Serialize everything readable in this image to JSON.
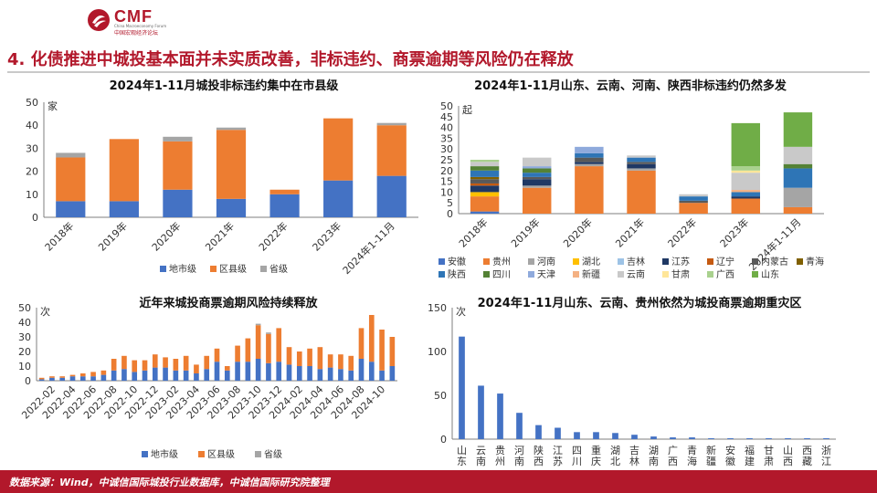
{
  "header": {
    "logo_text": "CMF",
    "logo_en": "China Macroeconomy Forum",
    "logo_cn": "中国宏观经济论坛",
    "headline": "4. 化债推进中城投基本面并未实质改善，非标违约、商票逾期等风险仍在释放"
  },
  "footer": {
    "source": "数据来源：Wind，中诚信国际城投行业数据库，中诚信国际研究院整理"
  },
  "colors": {
    "brand": "#b2182b",
    "series": {
      "地市级": "#4472c4",
      "区县级": "#ed7d31",
      "省级": "#a5a5a5",
      "安徽": "#4472c4",
      "贵州": "#ed7d31",
      "河南": "#a5a5a5",
      "湖北": "#ffc000",
      "吉林": "#9dc3e6",
      "江苏": "#1f3864",
      "辽宁": "#c55a11",
      "内蒙古": "#595959",
      "青海": "#806000",
      "陕西": "#2e75b6",
      "四川": "#548235",
      "天津": "#8faadc",
      "新疆": "#f4b183",
      "云南": "#c9c9c9",
      "甘肃": "#ffe699",
      "广西": "#a9d18e",
      "山东": "#70ad47"
    }
  },
  "chart_data": [
    {
      "id": "c1",
      "type": "bar",
      "stacked": true,
      "title": "2024年1-11月城投非标违约集中在市县级",
      "unit": "家",
      "categories": [
        "2018年",
        "2019年",
        "2020年",
        "2021年",
        "2022年",
        "2023年",
        "2024年1-11月"
      ],
      "series": [
        {
          "name": "地市级",
          "values": [
            7,
            7,
            12,
            8,
            10,
            16,
            18
          ]
        },
        {
          "name": "区县级",
          "values": [
            19,
            27,
            21,
            30,
            2,
            27,
            22
          ]
        },
        {
          "name": "省级",
          "values": [
            2,
            0,
            2,
            1,
            0,
            0,
            1
          ]
        }
      ],
      "ylim": [
        0,
        50
      ],
      "yticks": [
        0,
        10,
        20,
        30,
        40,
        50
      ],
      "legend": "bottom",
      "grid": false
    },
    {
      "id": "c2",
      "type": "bar",
      "stacked": true,
      "title": "2024年1-11月山东、云南、河南、陕西非标违约仍然多发",
      "unit": "起",
      "categories": [
        "2018年",
        "2019年",
        "2020年",
        "2021年",
        "2022年",
        "2023年",
        "2024年1-11月"
      ],
      "series": [
        {
          "name": "安徽",
          "values": [
            1,
            0,
            0,
            0,
            0,
            0,
            0
          ]
        },
        {
          "name": "贵州",
          "values": [
            7,
            12,
            22,
            20,
            5,
            7,
            3
          ]
        },
        {
          "name": "河南",
          "values": [
            0,
            1,
            1,
            1,
            0,
            0,
            9
          ]
        },
        {
          "name": "湖北",
          "values": [
            2,
            0,
            0,
            0,
            0,
            0,
            0
          ]
        },
        {
          "name": "吉林",
          "values": [
            0,
            0,
            0,
            0,
            0,
            0,
            0
          ]
        },
        {
          "name": "江苏",
          "values": [
            3,
            3,
            1,
            2,
            0,
            1,
            0
          ]
        },
        {
          "name": "辽宁",
          "values": [
            1,
            0,
            0,
            0,
            0,
            0,
            0
          ]
        },
        {
          "name": "内蒙古",
          "values": [
            2,
            1,
            2,
            1,
            1,
            0,
            0
          ]
        },
        {
          "name": "青海",
          "values": [
            1,
            0,
            0,
            0,
            0,
            0,
            0
          ]
        },
        {
          "name": "陕西",
          "values": [
            3,
            2,
            2,
            2,
            2,
            2,
            9
          ]
        },
        {
          "name": "四川",
          "values": [
            2,
            2,
            0,
            0,
            0,
            0,
            2
          ]
        },
        {
          "name": "天津",
          "values": [
            0,
            1,
            3,
            0,
            0,
            0,
            0
          ]
        },
        {
          "name": "新疆",
          "values": [
            0,
            0,
            0,
            0,
            0,
            1,
            0
          ]
        },
        {
          "name": "云南",
          "values": [
            2,
            4,
            0,
            1,
            1,
            8,
            8
          ]
        },
        {
          "name": "甘肃",
          "values": [
            0,
            0,
            0,
            0,
            0,
            1,
            0
          ]
        },
        {
          "name": "广西",
          "values": [
            1,
            0,
            0,
            0,
            0,
            2,
            0
          ]
        },
        {
          "name": "山东",
          "values": [
            0,
            0,
            0,
            0,
            0,
            20,
            16
          ]
        }
      ],
      "ylim": [
        0,
        50
      ],
      "yticks": [
        0,
        5,
        10,
        15,
        20,
        25,
        30,
        35,
        40,
        45,
        50
      ],
      "legend": "bottom",
      "grid": false
    },
    {
      "id": "c3",
      "type": "bar",
      "stacked": true,
      "title": "近年来城投商票逾期风险持续释放",
      "unit": "次",
      "categories": [
        "2022-01",
        "2022-02",
        "2022-03",
        "2022-04",
        "2022-05",
        "2022-06",
        "2022-07",
        "2022-08",
        "2022-09",
        "2022-10",
        "2022-11",
        "2022-12",
        "2023-01",
        "2023-02",
        "2023-03",
        "2023-04",
        "2023-05",
        "2023-06",
        "2023-07",
        "2023-08",
        "2023-09",
        "2023-10",
        "2023-11",
        "2023-12",
        "2024-01",
        "2024-02",
        "2024-03",
        "2024-04",
        "2024-05",
        "2024-06",
        "2024-07",
        "2024-08",
        "2024-09",
        "2024-10",
        "2024-11"
      ],
      "xtick_labels": [
        "2022-02",
        "2022-04",
        "2022-06",
        "2022-08",
        "2022-10",
        "2022-12",
        "2023-02",
        "2023-04",
        "2023-06",
        "2023-08",
        "2023-10",
        "2023-12",
        "2024-02",
        "2024-04",
        "2024-06",
        "2024-08",
        "2024-10"
      ],
      "series": [
        {
          "name": "地市级",
          "values": [
            1,
            2,
            2,
            3,
            3,
            3,
            4,
            7,
            8,
            6,
            7,
            9,
            9,
            7,
            7,
            5,
            8,
            13,
            7,
            13,
            13,
            15,
            12,
            13,
            11,
            10,
            10,
            8,
            9,
            8,
            7,
            15,
            13,
            7,
            10
          ]
        },
        {
          "name": "区县级",
          "values": [
            1,
            1,
            1,
            1,
            2,
            3,
            3,
            8,
            9,
            8,
            7,
            9,
            7,
            8,
            10,
            6,
            9,
            9,
            3,
            11,
            16,
            23,
            20,
            23,
            12,
            10,
            12,
            15,
            9,
            10,
            10,
            21,
            32,
            28,
            20
          ]
        },
        {
          "name": "省级",
          "values": [
            0,
            0,
            0,
            0,
            0,
            0,
            0,
            0,
            0,
            0,
            0,
            0,
            0,
            0,
            0,
            0,
            0,
            0,
            0,
            0,
            0,
            1,
            1,
            0,
            0,
            0,
            0,
            0,
            0,
            0,
            0,
            0,
            0,
            0,
            0
          ]
        }
      ],
      "ylim": [
        0,
        50
      ],
      "yticks": [
        0,
        10,
        20,
        30,
        40,
        50
      ],
      "legend": "bottom",
      "grid": false
    },
    {
      "id": "c4",
      "type": "bar",
      "title": "2024年1-11月山东、云南、贵州依然为城投商票逾期重灾区",
      "unit": "次",
      "categories": [
        "山东",
        "云南",
        "贵州",
        "河南",
        "陕西",
        "江苏",
        "四川",
        "重庆",
        "湖北",
        "吉林",
        "湖南",
        "广西",
        "青海",
        "新疆",
        "安徽",
        "福建",
        "甘肃",
        "山西",
        "西藏",
        "浙江"
      ],
      "values": [
        117,
        61,
        52,
        30,
        16,
        13,
        8,
        8,
        7,
        5,
        3,
        2,
        2,
        1,
        1,
        1,
        1,
        1,
        1,
        1
      ],
      "ylim": [
        0,
        150
      ],
      "yticks": [
        0,
        50,
        100,
        150
      ],
      "grid": false
    }
  ]
}
